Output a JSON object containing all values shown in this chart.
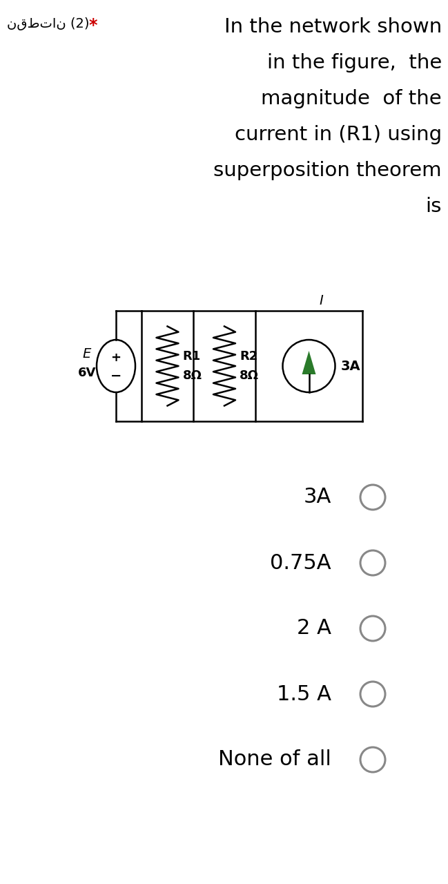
{
  "bg_color": "#ffffff",
  "title_arabic": "نقطتان (2)",
  "star": "*",
  "question_lines": [
    "In the network shown",
    "in the figure,  the",
    "magnitude  of the",
    "current in (R1) using",
    "superposition theorem",
    "is"
  ],
  "options": [
    "3A",
    "0.75A",
    "2 A",
    "1.5 A",
    "None of all"
  ],
  "V_label_E": "E",
  "V_label_val": "6V",
  "V_plus": "+",
  "V_minus": "−",
  "R1_label": "R1",
  "R1_val": "8Ω",
  "R2_label": "R2",
  "R2_val": "8Ω",
  "I_label": "I",
  "I_val": "3A",
  "question_fontsize": 21,
  "option_fontsize": 22,
  "arabic_fontsize": 14,
  "star_color": "#cc0000",
  "circuit_lw": 1.8,
  "option_circle_color": "#888888"
}
